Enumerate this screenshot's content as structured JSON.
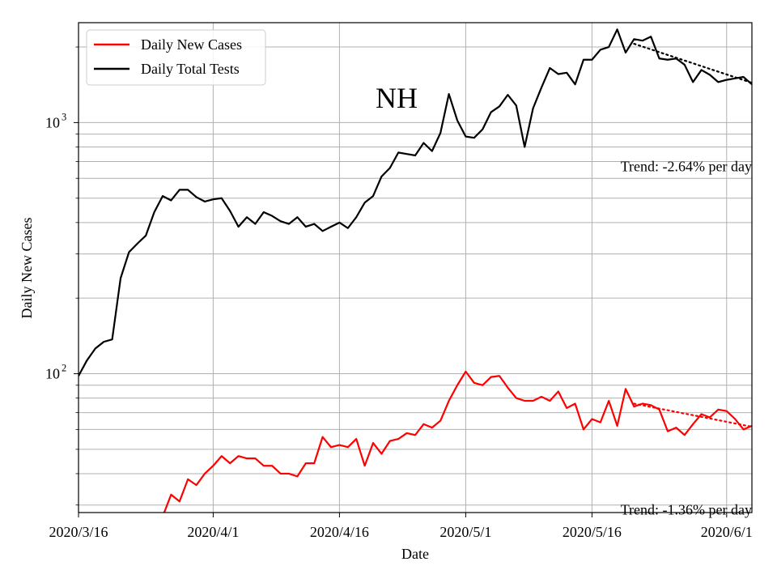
{
  "chart_data": {
    "type": "line",
    "title": "NH",
    "xlabel": "Date",
    "ylabel": "Daily New Cases",
    "y_scale": "log",
    "ylim": [
      28,
      2500
    ],
    "xlim": [
      "2020-03-16",
      "2020-06-04"
    ],
    "x_ticks": [
      {
        "date": "2020-03-16",
        "label": "2020/3/16"
      },
      {
        "date": "2020-04-01",
        "label": "2020/4/1"
      },
      {
        "date": "2020-04-16",
        "label": "2020/4/16"
      },
      {
        "date": "2020-05-01",
        "label": "2020/5/1"
      },
      {
        "date": "2020-05-16",
        "label": "2020/5/16"
      },
      {
        "date": "2020-06-01",
        "label": "2020/6/1"
      }
    ],
    "y_ticks": [
      {
        "value": 100,
        "base": "10",
        "exp": "2"
      },
      {
        "value": 1000,
        "base": "10",
        "exp": "3"
      }
    ],
    "grid": true,
    "legend_position": "top-left",
    "series": [
      {
        "name": "Daily New Cases",
        "color": "#ff0000",
        "x": [
          "2020-03-26",
          "2020-03-27",
          "2020-03-28",
          "2020-03-29",
          "2020-03-30",
          "2020-03-31",
          "2020-04-01",
          "2020-04-02",
          "2020-04-03",
          "2020-04-04",
          "2020-04-05",
          "2020-04-06",
          "2020-04-07",
          "2020-04-08",
          "2020-04-09",
          "2020-04-10",
          "2020-04-11",
          "2020-04-12",
          "2020-04-13",
          "2020-04-14",
          "2020-04-15",
          "2020-04-16",
          "2020-04-17",
          "2020-04-18",
          "2020-04-19",
          "2020-04-20",
          "2020-04-21",
          "2020-04-22",
          "2020-04-23",
          "2020-04-24",
          "2020-04-25",
          "2020-04-26",
          "2020-04-27",
          "2020-04-28",
          "2020-04-29",
          "2020-04-30",
          "2020-05-01",
          "2020-05-02",
          "2020-05-03",
          "2020-05-04",
          "2020-05-05",
          "2020-05-06",
          "2020-05-07",
          "2020-05-08",
          "2020-05-09",
          "2020-05-10",
          "2020-05-11",
          "2020-05-12",
          "2020-05-13",
          "2020-05-14",
          "2020-05-15",
          "2020-05-16",
          "2020-05-17",
          "2020-05-18",
          "2020-05-19",
          "2020-05-20",
          "2020-05-21",
          "2020-05-22",
          "2020-05-23",
          "2020-05-24",
          "2020-05-25",
          "2020-05-26",
          "2020-05-27",
          "2020-05-28",
          "2020-05-29",
          "2020-05-30",
          "2020-05-31",
          "2020-06-01",
          "2020-06-02",
          "2020-06-03",
          "2020-06-04"
        ],
        "values": [
          27,
          33,
          31,
          38,
          36,
          40,
          43,
          47,
          44,
          47,
          46,
          46,
          43,
          43,
          40,
          40,
          39,
          44,
          44,
          56,
          51,
          52,
          51,
          55,
          43,
          53,
          48,
          54,
          55,
          58,
          57,
          63,
          61,
          65,
          78,
          90,
          102,
          92,
          90,
          97,
          98,
          88,
          80,
          78,
          78,
          81,
          78,
          85,
          73,
          76,
          60,
          66,
          64,
          78,
          62,
          87,
          74,
          76,
          75,
          72,
          59,
          61,
          57,
          63,
          69,
          67,
          72,
          71,
          66,
          60,
          62
        ]
      },
      {
        "name": "Daily Total Tests",
        "color": "#000000",
        "x": [
          "2020-03-16",
          "2020-03-17",
          "2020-03-18",
          "2020-03-19",
          "2020-03-20",
          "2020-03-21",
          "2020-03-22",
          "2020-03-23",
          "2020-03-24",
          "2020-03-25",
          "2020-03-26",
          "2020-03-27",
          "2020-03-28",
          "2020-03-29",
          "2020-03-30",
          "2020-03-31",
          "2020-04-01",
          "2020-04-02",
          "2020-04-03",
          "2020-04-04",
          "2020-04-05",
          "2020-04-06",
          "2020-04-07",
          "2020-04-08",
          "2020-04-09",
          "2020-04-10",
          "2020-04-11",
          "2020-04-12",
          "2020-04-13",
          "2020-04-14",
          "2020-04-15",
          "2020-04-16",
          "2020-04-17",
          "2020-04-18",
          "2020-04-19",
          "2020-04-20",
          "2020-04-21",
          "2020-04-22",
          "2020-04-23",
          "2020-04-24",
          "2020-04-25",
          "2020-04-26",
          "2020-04-27",
          "2020-04-28",
          "2020-04-29",
          "2020-04-30",
          "2020-05-01",
          "2020-05-02",
          "2020-05-03",
          "2020-05-04",
          "2020-05-05",
          "2020-05-06",
          "2020-05-07",
          "2020-05-08",
          "2020-05-09",
          "2020-05-10",
          "2020-05-11",
          "2020-05-12",
          "2020-05-13",
          "2020-05-14",
          "2020-05-15",
          "2020-05-16",
          "2020-05-17",
          "2020-05-18",
          "2020-05-19",
          "2020-05-20",
          "2020-05-21",
          "2020-05-22",
          "2020-05-23",
          "2020-05-24",
          "2020-05-25",
          "2020-05-26",
          "2020-05-27",
          "2020-05-28",
          "2020-05-29",
          "2020-05-30",
          "2020-05-31",
          "2020-06-01",
          "2020-06-02",
          "2020-06-03",
          "2020-06-04"
        ],
        "values": [
          98,
          113,
          126,
          134,
          137,
          240,
          305,
          330,
          355,
          440,
          510,
          490,
          540,
          540,
          505,
          485,
          495,
          500,
          445,
          385,
          420,
          395,
          440,
          425,
          405,
          395,
          420,
          385,
          395,
          370,
          385,
          400,
          380,
          420,
          480,
          510,
          610,
          660,
          760,
          750,
          740,
          830,
          770,
          910,
          1300,
          1020,
          880,
          870,
          940,
          1100,
          1160,
          1290,
          1170,
          800,
          1140,
          1380,
          1650,
          1560,
          1580,
          1420,
          1780,
          1780,
          1950,
          2000,
          2350,
          1900,
          2150,
          2120,
          2200,
          1800,
          1780,
          1800,
          1700,
          1450,
          1620,
          1550,
          1450,
          1480,
          1500,
          1520,
          1420
        ]
      }
    ],
    "trendlines": [
      {
        "series": "Daily Total Tests",
        "color": "#000000",
        "style": "dotted",
        "x": [
          "2020-05-21",
          "2020-06-04"
        ],
        "values": [
          2060,
          1440
        ]
      },
      {
        "series": "Daily New Cases",
        "color": "#ff0000",
        "style": "dotted",
        "x": [
          "2020-05-21",
          "2020-06-04"
        ],
        "values": [
          76,
          61.5
        ]
      }
    ],
    "annotations": [
      {
        "id": "tests-trend",
        "text": "Trend: -2.64% per day",
        "x": "2020-06-04",
        "y": 640,
        "anchor": "end"
      },
      {
        "id": "cases-trend",
        "text": "Trend: -1.36% per day",
        "x": "2020-06-04",
        "y": 27.5,
        "anchor": "end"
      }
    ]
  }
}
